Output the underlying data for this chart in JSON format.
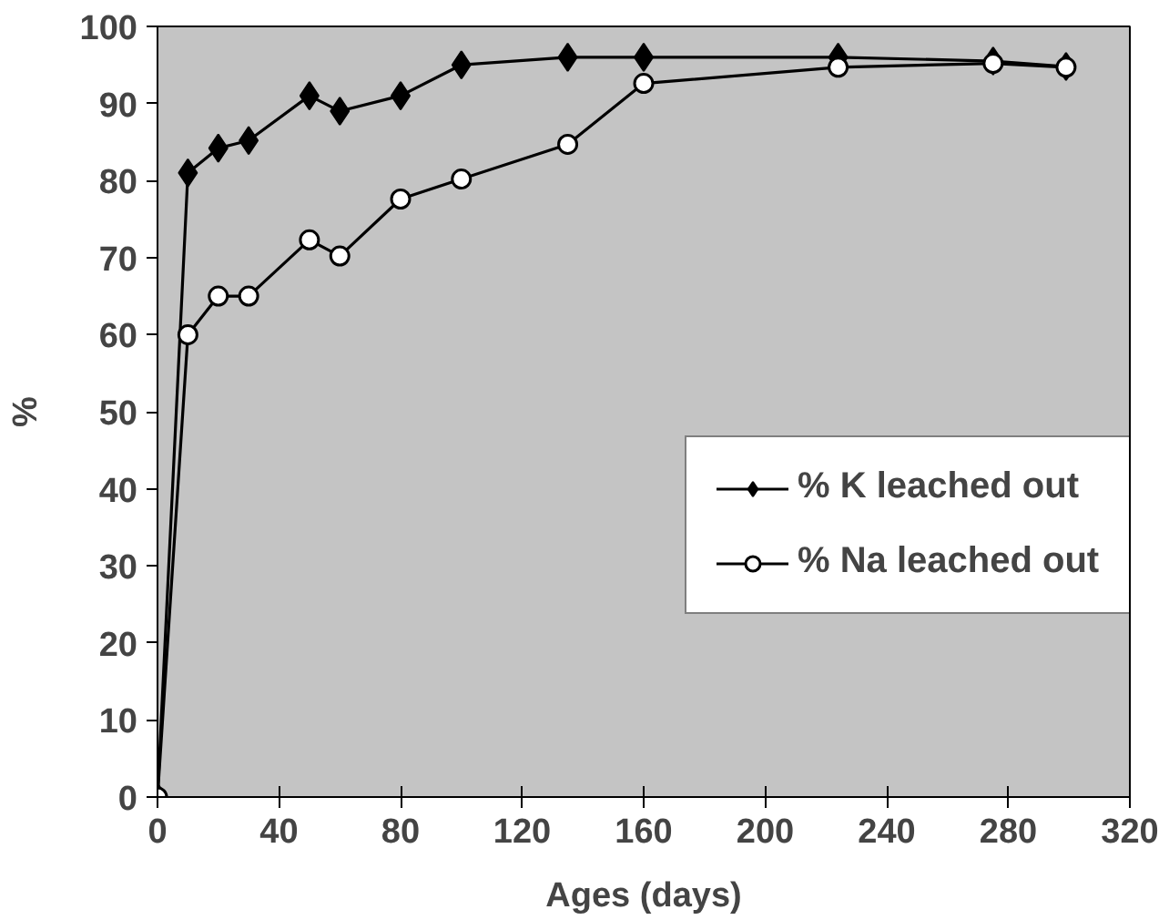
{
  "chart_data": {
    "type": "line",
    "xlabel": "Ages (days)",
    "ylabel": "%",
    "xlim": [
      0,
      320
    ],
    "xticks": [
      0,
      40,
      80,
      120,
      160,
      200,
      240,
      280,
      320
    ],
    "ylim": [
      0,
      100
    ],
    "yticks": [
      0,
      10,
      20,
      30,
      40,
      50,
      60,
      70,
      80,
      90,
      100
    ],
    "grid": false,
    "legend": "right",
    "series": [
      {
        "name": "% K leached out",
        "color": "#000000",
        "marker": "diamond",
        "x": [
          0,
          10,
          20,
          30,
          50,
          60,
          80,
          100,
          135,
          160,
          224,
          275,
          299
        ],
        "values": [
          0,
          81,
          84.2,
          85.2,
          91,
          89,
          91,
          95,
          96,
          96,
          96,
          95.5,
          94.8
        ]
      },
      {
        "name": "% Na leached out",
        "color": "#000000",
        "marker": "circle",
        "x": [
          0,
          10,
          20,
          30,
          50,
          60,
          80,
          100,
          135,
          160,
          224,
          275,
          299
        ],
        "values": [
          0,
          60,
          65,
          65,
          72.3,
          70.2,
          77.6,
          80.2,
          84.7,
          92.6,
          94.7,
          95.2,
          94.7
        ]
      }
    ]
  }
}
